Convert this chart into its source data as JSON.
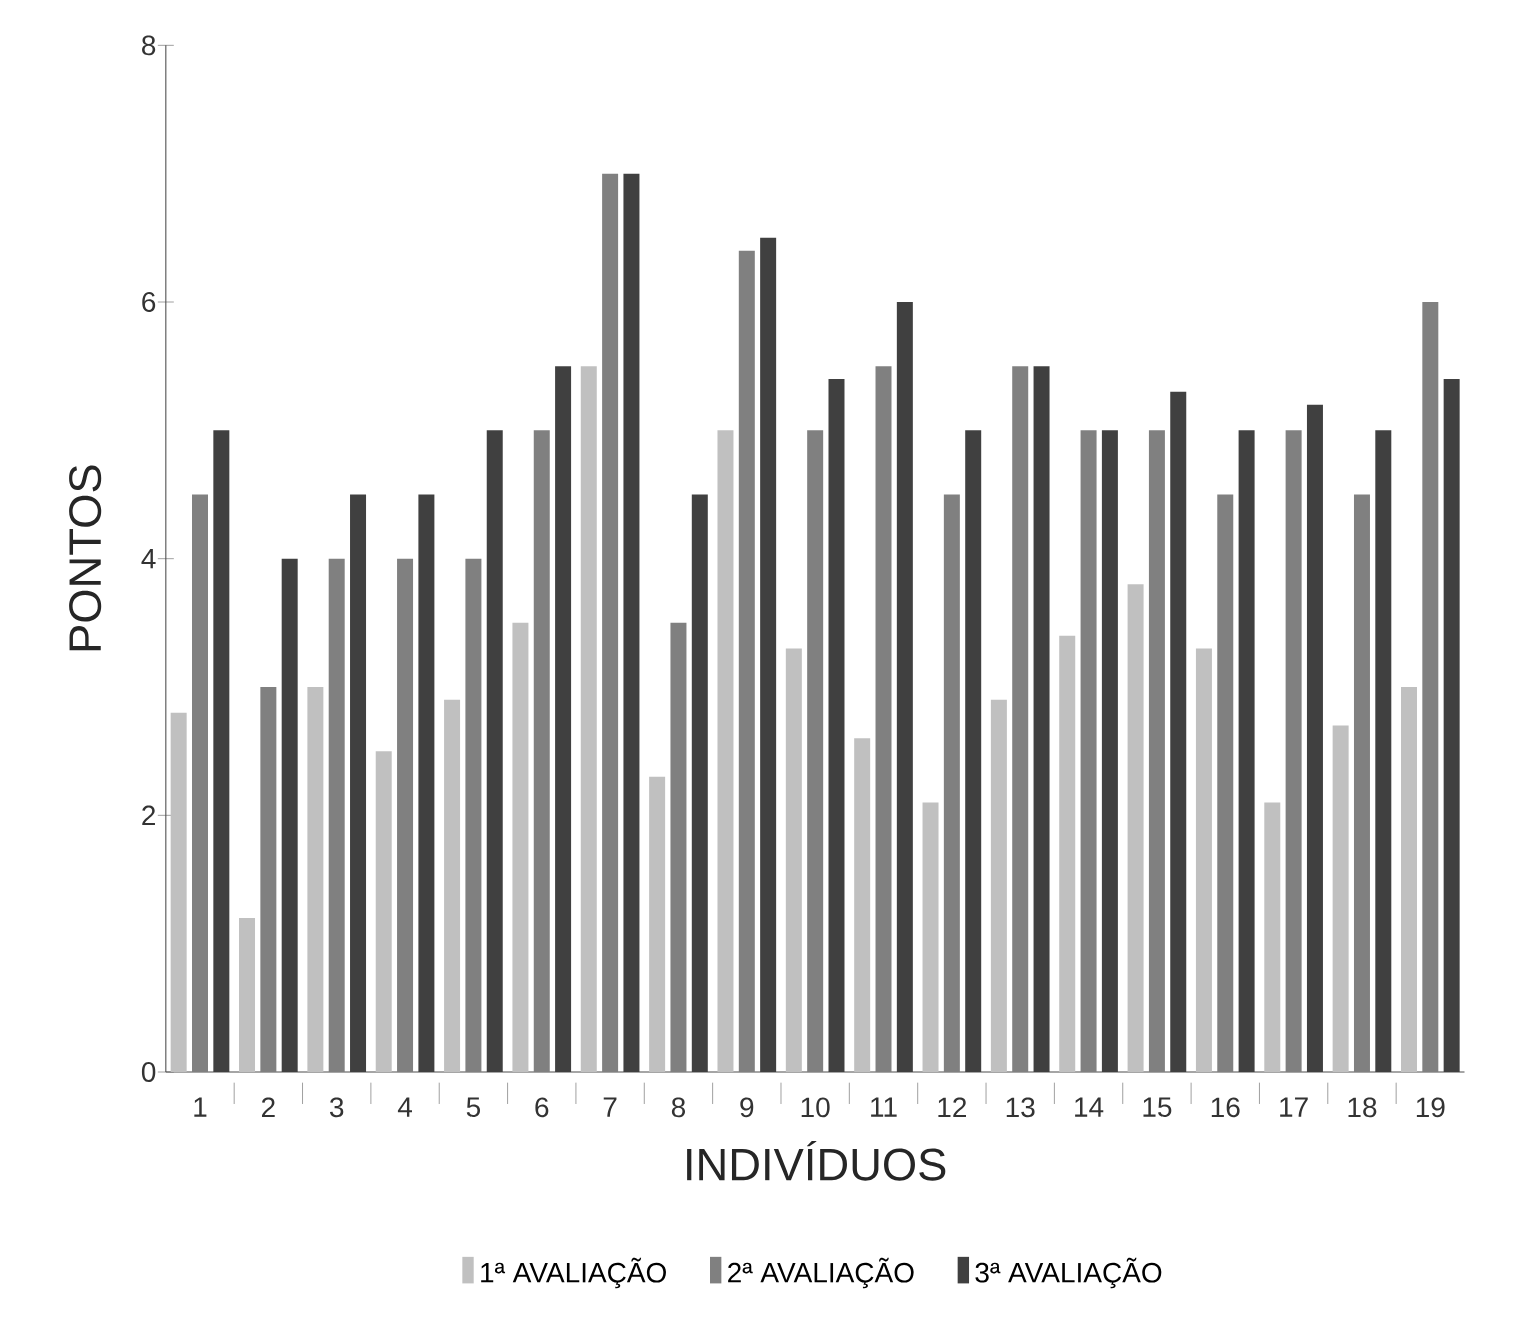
{
  "chart_data": {
    "type": "bar",
    "xlabel": "INDIVÍDUOS",
    "ylabel": "PONTOS",
    "categories": [
      "1",
      "2",
      "3",
      "4",
      "5",
      "6",
      "7",
      "8",
      "9",
      "10",
      "11",
      "12",
      "13",
      "14",
      "15",
      "16",
      "17",
      "18",
      "19"
    ],
    "series": [
      {
        "name": "1ª AVALIAÇÃO",
        "color": "#c0c0c0",
        "values": [
          2.8,
          1.2,
          3.0,
          2.5,
          2.9,
          3.5,
          5.5,
          2.3,
          5.0,
          3.3,
          2.6,
          2.1,
          2.9,
          3.4,
          3.8,
          3.3,
          2.1,
          2.7,
          3.0
        ]
      },
      {
        "name": "2ª AVALIAÇÃO",
        "color": "#808080",
        "values": [
          4.5,
          3.0,
          4.0,
          4.0,
          4.0,
          5.0,
          7.0,
          3.5,
          6.4,
          5.0,
          5.5,
          4.5,
          5.5,
          5.0,
          5.0,
          4.5,
          5.0,
          4.5,
          6.0
        ]
      },
      {
        "name": "3ª AVALIAÇÃO",
        "color": "#404040",
        "values": [
          5.0,
          4.0,
          4.5,
          4.5,
          5.0,
          5.5,
          7.0,
          4.5,
          6.5,
          5.4,
          6.0,
          5.0,
          5.5,
          5.0,
          5.3,
          5.0,
          5.2,
          5.0,
          5.4
        ]
      }
    ],
    "ylim": [
      0,
      8
    ],
    "yticks": [
      0,
      2,
      4,
      6,
      8
    ],
    "grid": false,
    "legend": "bottom"
  }
}
